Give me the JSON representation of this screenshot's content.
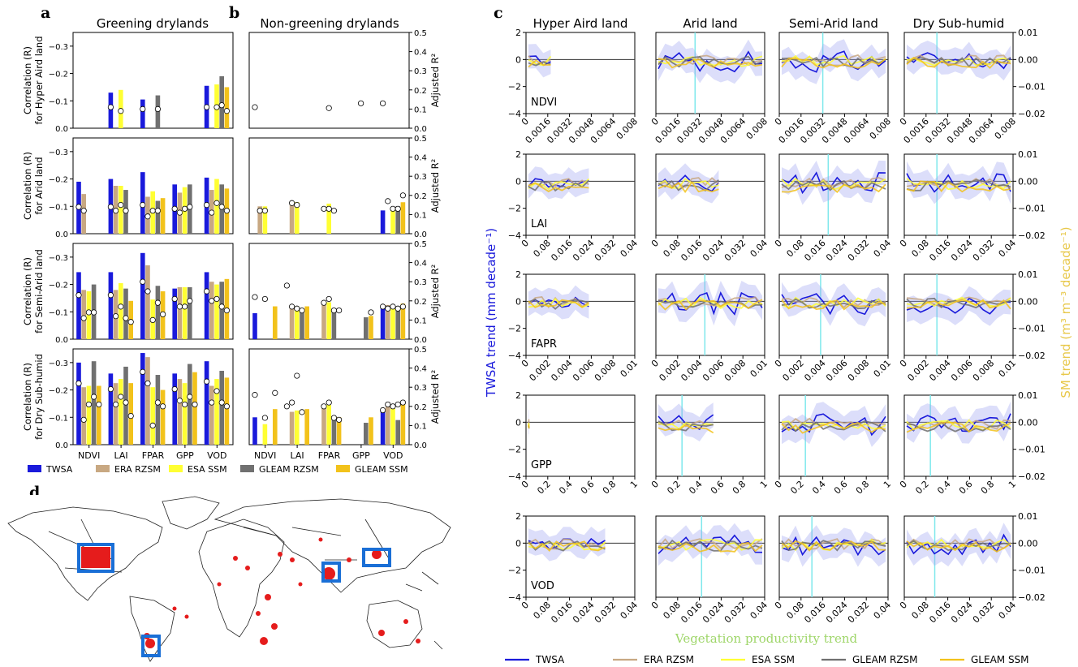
{
  "panel_letters": {
    "a": "a",
    "b": "b",
    "c": "c",
    "d": "d"
  },
  "headers": {
    "a": "Greening drylands",
    "b": "Non-greening drylands"
  },
  "c_columns": [
    "Hyper Aird land",
    "Arid land",
    "Semi-Arid land",
    "Dry Sub-humid"
  ],
  "c_row_labels": [
    "NDVI",
    "LAI",
    "FAPR",
    "GPP",
    "VOD"
  ],
  "ab_row_ylabels": [
    [
      "Correlation (R)",
      "for Hyper Aird land"
    ],
    [
      "Correlation (R)",
      "for Arid land"
    ],
    [
      "Correlation (R)",
      "for Semi-Arid land"
    ],
    [
      "Correlation (R)",
      "for Dry Sub-humid"
    ]
  ],
  "ab_right_ylabel": "Adjusted R²",
  "ab_categories": [
    "NDVI",
    "LAI",
    "FPAR",
    "GPP",
    "VOD"
  ],
  "ab_left_ticks": [
    "0.0",
    "−0.1",
    "−0.2",
    "−0.3"
  ],
  "ab_right_ticks": [
    "0.0",
    "0.1",
    "0.2",
    "0.3",
    "0.4",
    "0.5"
  ],
  "c_left_ylabel": "TWSA trend (mm decade⁻¹)",
  "c_right_ylabel": "SM trend (m³ m⁻³ decade⁻¹)",
  "c_xlabel": "Vegetation productivity trend",
  "c_left_ticks": [
    "2",
    "0",
    "−2",
    "−4"
  ],
  "c_right_ticks": [
    "0.01",
    "0.00",
    "−0.01",
    "−0.02"
  ],
  "c_xticks": [
    [
      "0",
      "0.0016",
      "0.0032",
      "0.0048",
      "0.0064",
      "0.008"
    ],
    [
      "0",
      "0.08",
      "0.016",
      "0.024",
      "0.032",
      "0.04"
    ],
    [
      "0",
      "0.002",
      "0.004",
      "0.006",
      "0.008",
      "0.01"
    ],
    [
      "0",
      "0.2",
      "0.4",
      "0.6",
      "0.8",
      "1"
    ],
    [
      "0",
      "0.08",
      "0.016",
      "0.024",
      "0.032",
      "0.04"
    ]
  ],
  "colors": {
    "TWSA": "#1a1adb",
    "ERA RZSM": "#c8a882",
    "ESA SSM": "#ffff33",
    "GLEAM RZSM": "#707070",
    "GLEAM SSM": "#f2c21b",
    "cyan": "#7fe8ec",
    "xlabel": "#9fd66a",
    "right_label": "#e8c84a"
  },
  "legend_ab": [
    "TWSA",
    "ERA RZSM",
    "ESA SSM",
    "GLEAM RZSM",
    "GLEAM SSM"
  ],
  "legend_c": [
    "TWSA",
    "ERA RZSM",
    "ESA SSM",
    "GLEAM RZSM",
    "GLEAM SSM"
  ],
  "chart_data": [
    {
      "type": "bar",
      "panel": "a",
      "title": "Greening drylands",
      "categories": [
        "NDVI",
        "LAI",
        "FPAR",
        "GPP",
        "VOD"
      ],
      "series_names": [
        "TWSA",
        "ERA RZSM",
        "ESA SSM",
        "GLEAM RZSM",
        "GLEAM SSM"
      ],
      "rows": [
        {
          "row": "Hyper Aird land",
          "bars": [
            [
              0,
              0,
              0,
              0,
              0
            ],
            [
              0.13,
              0,
              0.14,
              0,
              0
            ],
            [
              0.105,
              0,
              0,
              0.12,
              0
            ],
            [
              0,
              0,
              0,
              0,
              0
            ],
            [
              0.155,
              0,
              0.16,
              0.19,
              0.15
            ]
          ],
          "adj_r2": [
            [
              null,
              null,
              null,
              null,
              null
            ],
            [
              0.11,
              null,
              0.09,
              null,
              null
            ],
            [
              0.1,
              null,
              null,
              0.1,
              null
            ],
            [
              null,
              null,
              null,
              null,
              null
            ],
            [
              0.11,
              null,
              0.11,
              0.12,
              0.09
            ]
          ]
        },
        {
          "row": "Arid land",
          "bars": [
            [
              0.19,
              0.145,
              0,
              0,
              0
            ],
            [
              0.2,
              0.175,
              0.175,
              0.16,
              0
            ],
            [
              0.225,
              0.135,
              0.155,
              0.12,
              0.13
            ],
            [
              0.18,
              0.15,
              0.17,
              0.18,
              0
            ],
            [
              0.205,
              0.16,
              0.2,
              0.18,
              0.165
            ]
          ],
          "adj_r2": [
            [
              0.14,
              0.12,
              null,
              null,
              null
            ],
            [
              0.14,
              0.12,
              0.15,
              0.12,
              null
            ],
            [
              0.15,
              0.09,
              0.12,
              0.12,
              null
            ],
            [
              0.13,
              0.11,
              0.13,
              0.14,
              null
            ],
            [
              0.15,
              0.11,
              0.16,
              0.14,
              0.12
            ]
          ]
        },
        {
          "row": "Semi-Arid land",
          "bars": [
            [
              0.245,
              0.18,
              0.175,
              0.2,
              0
            ],
            [
              0.245,
              0.18,
              0.205,
              0.185,
              0.14
            ],
            [
              0.315,
              0.27,
              0.145,
              0.195,
              0.175
            ],
            [
              0.185,
              0.19,
              0.19,
              0.19,
              0
            ],
            [
              0.245,
              0.21,
              0.2,
              0.21,
              0.22
            ]
          ],
          "adj_r2": [
            [
              0.23,
              0.11,
              0.14,
              0.14,
              null
            ],
            [
              0.23,
              0.12,
              0.17,
              0.11,
              0.09
            ],
            [
              0.3,
              0.25,
              0.1,
              0.19,
              0.13
            ],
            [
              0.21,
              0.17,
              0.17,
              0.2,
              null
            ],
            [
              0.25,
              0.2,
              0.21,
              0.17,
              0.15
            ]
          ]
        },
        {
          "row": "Dry Sub-humid",
          "bars": [
            [
              0.3,
              0.21,
              0.215,
              0.305,
              0.215
            ],
            [
              0.26,
              0.225,
              0.24,
              0.285,
              0.225
            ],
            [
              0.335,
              0.32,
              0.21,
              0.255,
              0.2
            ],
            [
              0.26,
              0.24,
              0.225,
              0.295,
              0.265
            ],
            [
              0.305,
              0.215,
              0.24,
              0.27,
              0.245
            ]
          ],
          "adj_r2": [
            [
              0.32,
              0.13,
              0.21,
              0.25,
              0.21
            ],
            [
              0.29,
              0.21,
              0.25,
              0.22,
              0.15
            ],
            [
              0.38,
              0.32,
              0.1,
              0.22,
              0.2
            ],
            [
              0.29,
              0.23,
              0.21,
              0.25,
              0.21
            ],
            [
              0.33,
              0.22,
              0.28,
              0.22,
              0.2
            ]
          ]
        }
      ],
      "ylim": [
        0,
        -0.35
      ],
      "adj_r2_lim": [
        0,
        0.5
      ]
    },
    {
      "type": "bar",
      "panel": "b",
      "title": "Non-greening drylands",
      "categories": [
        "NDVI",
        "LAI",
        "FPAR",
        "GPP",
        "VOD"
      ],
      "series_names": [
        "TWSA",
        "ERA RZSM",
        "ESA SSM",
        "GLEAM RZSM",
        "GLEAM SSM"
      ],
      "rows": [
        {
          "row": "Hyper Aird land",
          "bars": [
            [
              0,
              0,
              0,
              0,
              0
            ],
            [
              0,
              0,
              0,
              0,
              0
            ],
            [
              0,
              0,
              0,
              0,
              0
            ],
            [
              0,
              0,
              0,
              0,
              0
            ],
            [
              0,
              0,
              0,
              0,
              0
            ]
          ],
          "adj_r2": [
            [
              0.11,
              null,
              null,
              null,
              null
            ],
            [
              null,
              null,
              null,
              null,
              null
            ],
            [
              null,
              null,
              0.105,
              null,
              null
            ],
            [
              null,
              null,
              0.13,
              null,
              null
            ],
            [
              0.13,
              null,
              null,
              null,
              null
            ]
          ]
        },
        {
          "row": "Arid land",
          "bars": [
            [
              0,
              0.1,
              0.1,
              0,
              0
            ],
            [
              0,
              0.12,
              0.115,
              0,
              0
            ],
            [
              0,
              0,
              0.11,
              0,
              0
            ],
            [
              0,
              0,
              0,
              0,
              0
            ],
            [
              0.085,
              0,
              0.09,
              0.1,
              0.115
            ]
          ],
          "adj_r2": [
            [
              null,
              0.12,
              0.12,
              null,
              null
            ],
            [
              null,
              0.16,
              0.15,
              null,
              null
            ],
            [
              null,
              0.13,
              0.13,
              0.12,
              null
            ],
            [
              null,
              null,
              null,
              null,
              null
            ],
            [
              null,
              0.17,
              0.13,
              0.13,
              0.2
            ]
          ]
        },
        {
          "row": "Semi-Arid land",
          "bars": [
            [
              0.095,
              0,
              0,
              0,
              0.12
            ],
            [
              0,
              0.12,
              0.12,
              0.105,
              0.12
            ],
            [
              0,
              0.13,
              0.135,
              0.1,
              0
            ],
            [
              0,
              0,
              0,
              0.08,
              0.085
            ],
            [
              0.115,
              0.125,
              0.115,
              0.12,
              0.13
            ]
          ],
          "adj_r2": [
            [
              0.22,
              null,
              0.21,
              null,
              null
            ],
            [
              0.28,
              0.17,
              0.16,
              0.15,
              null
            ],
            [
              null,
              0.19,
              0.21,
              0.15,
              0.15
            ],
            [
              null,
              null,
              null,
              null,
              0.14
            ],
            [
              0.17,
              0.16,
              0.17,
              0.16,
              0.17
            ]
          ]
        },
        {
          "row": "Dry Sub-humid",
          "bars": [
            [
              0.1,
              0,
              0.075,
              0,
              0.13
            ],
            [
              0,
              0.12,
              0.125,
              0,
              0.13
            ],
            [
              0,
              0.14,
              0.145,
              0.105,
              0.1
            ],
            [
              0,
              0,
              0,
              0.08,
              0.1
            ],
            [
              0.125,
              0.14,
              0.135,
              0.09,
              0.15
            ]
          ],
          "adj_r2": [
            [
              0.26,
              null,
              0.14,
              null,
              0.27
            ],
            [
              0.2,
              0.22,
              0.36,
              0.17,
              null
            ],
            [
              null,
              0.2,
              0.22,
              0.14,
              0.13
            ],
            [
              null,
              null,
              null,
              null,
              null
            ],
            [
              0.18,
              0.21,
              0.2,
              0.21,
              0.22
            ]
          ]
        }
      ],
      "ylim": [
        0,
        -0.35
      ],
      "adj_r2_lim": [
        0,
        0.5
      ]
    },
    {
      "type": "line",
      "panel": "c",
      "columns": [
        "Hyper Aird land",
        "Arid land",
        "Semi-Arid land",
        "Dry Sub-humid"
      ],
      "rows": [
        "NDVI",
        "LAI",
        "FAPR",
        "GPP",
        "VOD"
      ],
      "left_ylim": [
        -4,
        2
      ],
      "right_ylim": [
        -0.02,
        0.01
      ],
      "xlim_by_row": [
        [
          0,
          0.008
        ],
        [
          0,
          0.04
        ],
        [
          0,
          0.01
        ],
        [
          0,
          1
        ],
        [
          0,
          0.04
        ]
      ],
      "cyan_marker_x_fraction_by_row": [
        [
          null,
          0.36,
          0.4,
          0.3
        ],
        [
          null,
          null,
          0.45,
          0.3
        ],
        [
          null,
          0.45,
          0.38,
          0.3
        ],
        [
          null,
          0.24,
          0.24,
          0.24
        ],
        [
          null,
          0.42,
          0.3,
          0.28
        ]
      ],
      "series": [
        "TWSA",
        "ERA RZSM",
        "ESA SSM",
        "GLEAM RZSM",
        "GLEAM SSM"
      ]
    }
  ]
}
